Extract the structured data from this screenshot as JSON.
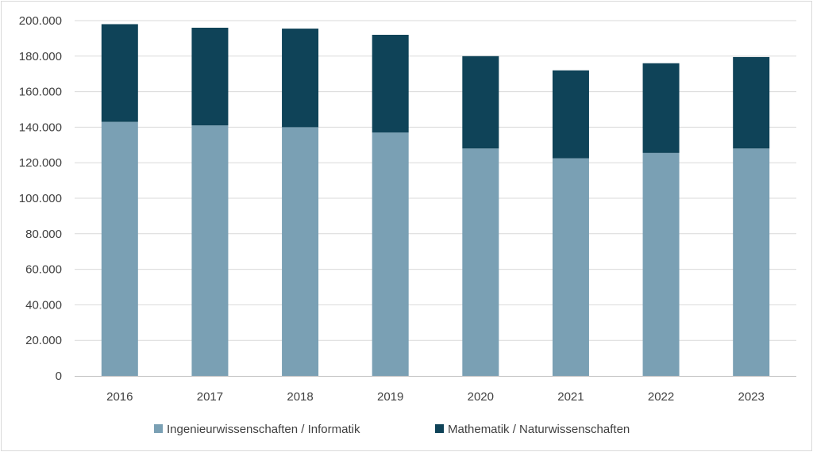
{
  "chart_data": {
    "type": "bar",
    "stacked": true,
    "categories": [
      "2016",
      "2017",
      "2018",
      "2019",
      "2020",
      "2021",
      "2022",
      "2023"
    ],
    "series": [
      {
        "name": "Ingenieurwissenschaften / Informatik",
        "color": "#7aa0b4",
        "values": [
          143000,
          141000,
          140000,
          137000,
          128000,
          122500,
          125500,
          128000
        ]
      },
      {
        "name": "Mathematik / Naturwissenschaften",
        "color": "#0f4358",
        "values": [
          55000,
          55000,
          55500,
          55000,
          52000,
          49500,
          50500,
          51500
        ]
      }
    ],
    "ylim": [
      0,
      200000
    ],
    "yticks": [
      0,
      20000,
      40000,
      60000,
      80000,
      100000,
      120000,
      140000,
      160000,
      180000,
      200000
    ],
    "ytick_labels": [
      "0",
      "20.000",
      "40.000",
      "60.000",
      "80.000",
      "100.000",
      "120.000",
      "140.000",
      "160.000",
      "180.000",
      "200.000"
    ],
    "grid": true,
    "legend_position": "bottom",
    "title": "",
    "xlabel": "",
    "ylabel": ""
  }
}
